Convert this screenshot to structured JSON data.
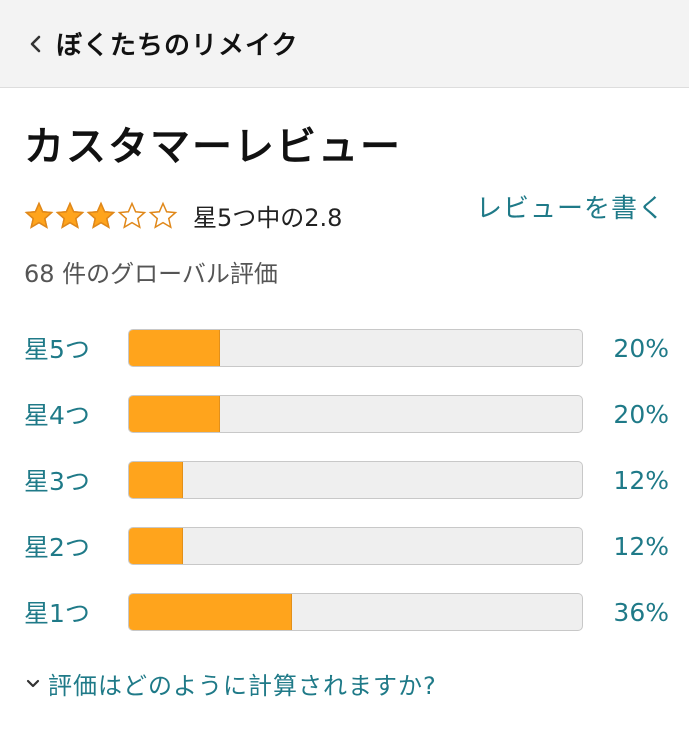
{
  "header": {
    "back_label": "ぼくたちのリメイク",
    "back_icon": "chevron-left-icon"
  },
  "reviews": {
    "title": "カスタマーレビュー",
    "rating_value": 2.8,
    "rating_text": "星5つ中の2.8",
    "write_review_label": "レビューを書く",
    "global_count_text": "68 件のグローバル評価",
    "star_color": "#ffa41c",
    "link_color": "#1f7a88",
    "histogram": [
      {
        "label": "星5つ",
        "percent_label": "20%",
        "percent": 20
      },
      {
        "label": "星4つ",
        "percent_label": "20%",
        "percent": 20
      },
      {
        "label": "星3つ",
        "percent_label": "12%",
        "percent": 12
      },
      {
        "label": "星2つ",
        "percent_label": "12%",
        "percent": 12
      },
      {
        "label": "星1つ",
        "percent_label": "36%",
        "percent": 36
      }
    ],
    "how_calculated_label": "評価はどのように計算されますか?",
    "how_calculated_icon": "chevron-down-icon"
  }
}
